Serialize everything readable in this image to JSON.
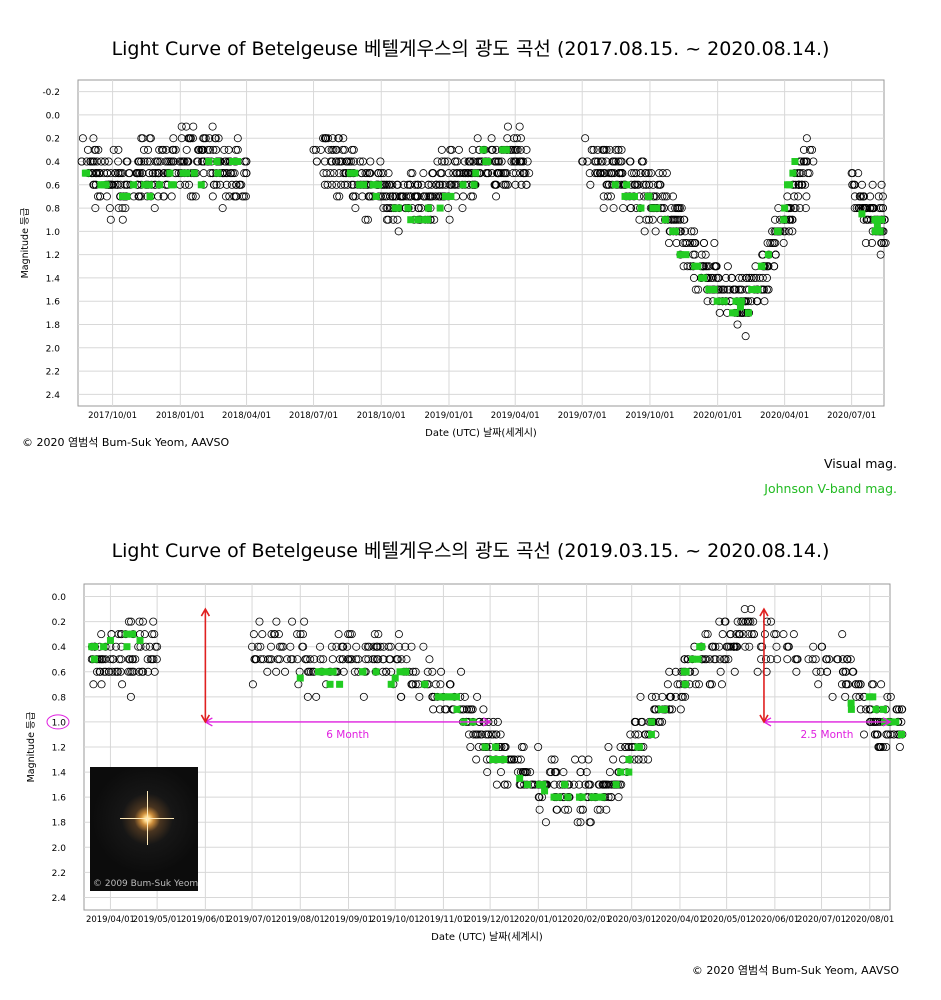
{
  "colors": {
    "visual": "#000000",
    "johnson": "#22cc22",
    "grid": "#d8d8d8",
    "arrow_red": "#e02020",
    "arrow_magenta": "#e020e0"
  },
  "legend": {
    "visual": "Visual mag.",
    "johnson": "Johnson V-band mag."
  },
  "credit_top": "© 2020 염범석 Bum-Suk Yeom, AAVSO",
  "credit_bottom": "© 2020 염범석 Bum-Suk Yeom, AAVSO",
  "photo_caption": "© 2009 Bum-Suk Yeom",
  "chart_data": [
    {
      "type": "scatter",
      "title": "Light Curve of Betelgeuse   베텔게우스의 광도 곡선 (2017.08.15. ~ 2020.08.14.)",
      "xlabel": "Date (UTC)    날짜(세계시)",
      "ylabel": "Magnitude  등급",
      "xlim": [
        "2017-08-15",
        "2020-08-14"
      ],
      "ylim": [
        -0.3,
        2.5
      ],
      "y_inverted": true,
      "grid": true,
      "yticks": [
        "-0.2",
        "0.0",
        "0.2",
        "0.4",
        "0.6",
        "0.8",
        "1.0",
        "1.2",
        "1.4",
        "1.6",
        "1.8",
        "2.0",
        "2.2",
        "2.4"
      ],
      "xticks": [
        "2017/10/01",
        "2018/01/01",
        "2018/04/01",
        "2018/07/01",
        "2018/10/01",
        "2019/01/01",
        "2019/04/01",
        "2019/07/01",
        "2019/10/01",
        "2020/01/01",
        "2020/04/01",
        "2020/07/01"
      ],
      "series": [
        {
          "name": "Visual mag.",
          "marker": "open-circle",
          "x": [
            "2017-08-20",
            "2017-09-10",
            "2017-10-01",
            "2017-10-20",
            "2017-11-10",
            "2017-12-01",
            "2017-12-20",
            "2018-01-10",
            "2018-02-01",
            "2018-02-20",
            "2018-03-10",
            "2018-04-01",
            "2018-07-01",
            "2018-08-01",
            "2018-08-20",
            "2018-09-10",
            "2018-10-01",
            "2018-10-20",
            "2018-11-10",
            "2018-12-01",
            "2018-12-20",
            "2019-01-10",
            "2019-02-01",
            "2019-02-20",
            "2019-03-10",
            "2019-04-01",
            "2019-04-20",
            "2019-07-01",
            "2019-08-01",
            "2019-08-20",
            "2019-09-10",
            "2019-10-01",
            "2019-10-20",
            "2019-11-10",
            "2019-12-01",
            "2019-12-20",
            "2020-01-10",
            "2020-02-01",
            "2020-02-20",
            "2020-03-10",
            "2020-04-01",
            "2020-04-20",
            "2020-05-10",
            "2020-07-01",
            "2020-07-20",
            "2020-08-05"
          ],
          "y": [
            0.4,
            0.5,
            0.6,
            0.6,
            0.5,
            0.5,
            0.4,
            0.4,
            0.4,
            0.4,
            0.5,
            0.5,
            0.3,
            0.4,
            0.5,
            0.6,
            0.6,
            0.7,
            0.7,
            0.7,
            0.6,
            0.6,
            0.5,
            0.4,
            0.4,
            0.4,
            0.5,
            0.4,
            0.5,
            0.5,
            0.6,
            0.7,
            0.8,
            1.0,
            1.2,
            1.4,
            1.5,
            1.6,
            1.5,
            1.3,
            0.9,
            0.6,
            0.4,
            0.5,
            0.8,
            0.9
          ]
        },
        {
          "name": "Johnson V-band mag.",
          "marker": "filled-square",
          "x": [
            "2017-08-25",
            "2017-09-20",
            "2017-10-20",
            "2017-11-20",
            "2017-12-20",
            "2018-01-20",
            "2018-02-20",
            "2018-03-20",
            "2018-08-20",
            "2018-09-20",
            "2018-10-20",
            "2018-11-20",
            "2018-12-20",
            "2019-01-20",
            "2019-02-20",
            "2019-03-20",
            "2019-08-15",
            "2019-09-10",
            "2019-10-05",
            "2019-11-01",
            "2019-12-01",
            "2019-12-20",
            "2020-01-10",
            "2020-02-01",
            "2020-02-20",
            "2020-03-10",
            "2020-04-01",
            "2020-04-15",
            "2020-07-15",
            "2020-08-05"
          ],
          "y": [
            0.5,
            0.6,
            0.7,
            0.6,
            0.6,
            0.5,
            0.4,
            0.4,
            0.5,
            0.6,
            0.8,
            0.9,
            0.8,
            0.6,
            0.4,
            0.3,
            0.6,
            0.7,
            0.8,
            1.0,
            1.3,
            1.5,
            1.6,
            1.65,
            1.5,
            1.2,
            0.8,
            0.4,
            0.85,
            0.95
          ]
        }
      ]
    },
    {
      "type": "scatter",
      "title": "Light Curve of Betelgeuse   베텔게우스의 광도 곡선 (2019.03.15. ~ 2020.08.14.)",
      "xlabel": "Date (UTC)    날짜(세계시)",
      "ylabel": "Magnitude  등급",
      "xlim": [
        "2019-03-15",
        "2020-08-14"
      ],
      "ylim": [
        -0.1,
        2.5
      ],
      "y_inverted": true,
      "grid": true,
      "yticks": [
        "0.0",
        "0.2",
        "0.4",
        "0.6",
        "0.8",
        "1.0",
        "1.2",
        "1.4",
        "1.6",
        "1.8",
        "2.0",
        "2.2",
        "2.4"
      ],
      "xticks": [
        "2019/04/01",
        "2019/05/01",
        "2019/06/01",
        "2019/07/01",
        "2019/08/01",
        "2019/09/01",
        "2019/10/01",
        "2019/11/01",
        "2019/12/01",
        "2020/01/01",
        "2020/02/01",
        "2020/03/01",
        "2020/04/01",
        "2020/05/01",
        "2020/06/01",
        "2020/07/01",
        "2020/08/01"
      ],
      "annotations": [
        {
          "text": "6 Month",
          "from": "2019-06-01",
          "to": "2019-12-01",
          "y": 1.0
        },
        {
          "text": "2.5 Month",
          "from": "2020-05-25",
          "to": "2020-08-14",
          "y": 1.0
        },
        {
          "text": "",
          "marker": "vertical-arrow",
          "x": "2019-06-01",
          "y_from": 1.0,
          "y_to": 0.1
        },
        {
          "text": "",
          "marker": "vertical-arrow",
          "x": "2020-05-25",
          "y_from": 1.0,
          "y_to": 0.1
        }
      ],
      "highlighted_ytick": "1.0",
      "series": [
        {
          "name": "Visual mag.",
          "marker": "open-circle",
          "x": [
            "2019-03-20",
            "2019-04-01",
            "2019-04-15",
            "2019-05-01",
            "2019-07-01",
            "2019-07-20",
            "2019-08-10",
            "2019-09-01",
            "2019-09-20",
            "2019-10-10",
            "2019-11-01",
            "2019-11-20",
            "2019-12-01",
            "2019-12-15",
            "2020-01-01",
            "2020-01-15",
            "2020-02-01",
            "2020-02-15",
            "2020-03-01",
            "2020-03-15",
            "2020-04-01",
            "2020-04-15",
            "2020-05-01",
            "2020-05-15",
            "2020-06-10",
            "2020-07-15",
            "2020-08-01",
            "2020-08-10"
          ],
          "y": [
            0.5,
            0.5,
            0.5,
            0.4,
            0.4,
            0.4,
            0.5,
            0.5,
            0.5,
            0.6,
            0.8,
            1.0,
            1.2,
            1.3,
            1.5,
            1.6,
            1.6,
            1.5,
            1.2,
            1.0,
            0.7,
            0.5,
            0.4,
            0.3,
            0.4,
            0.6,
            0.9,
            1.0
          ]
        },
        {
          "name": "Johnson V-band mag.",
          "marker": "filled-square",
          "x": [
            "2019-03-20",
            "2019-04-01",
            "2019-04-20",
            "2019-08-01",
            "2019-08-20",
            "2019-09-10",
            "2019-10-01",
            "2019-10-20",
            "2019-11-05",
            "2019-11-20",
            "2019-12-05",
            "2019-12-20",
            "2020-01-05",
            "2020-01-20",
            "2020-02-05",
            "2020-02-20",
            "2020-03-05",
            "2020-03-20",
            "2020-04-05",
            "2020-04-15",
            "2020-07-20",
            "2020-08-05",
            "2020-08-12"
          ],
          "y": [
            0.4,
            0.35,
            0.35,
            0.65,
            0.6,
            0.6,
            0.65,
            0.7,
            0.8,
            1.0,
            1.3,
            1.45,
            1.55,
            1.6,
            1.6,
            1.5,
            1.2,
            0.9,
            0.6,
            0.4,
            0.85,
            0.9,
            1.0
          ]
        }
      ]
    }
  ]
}
